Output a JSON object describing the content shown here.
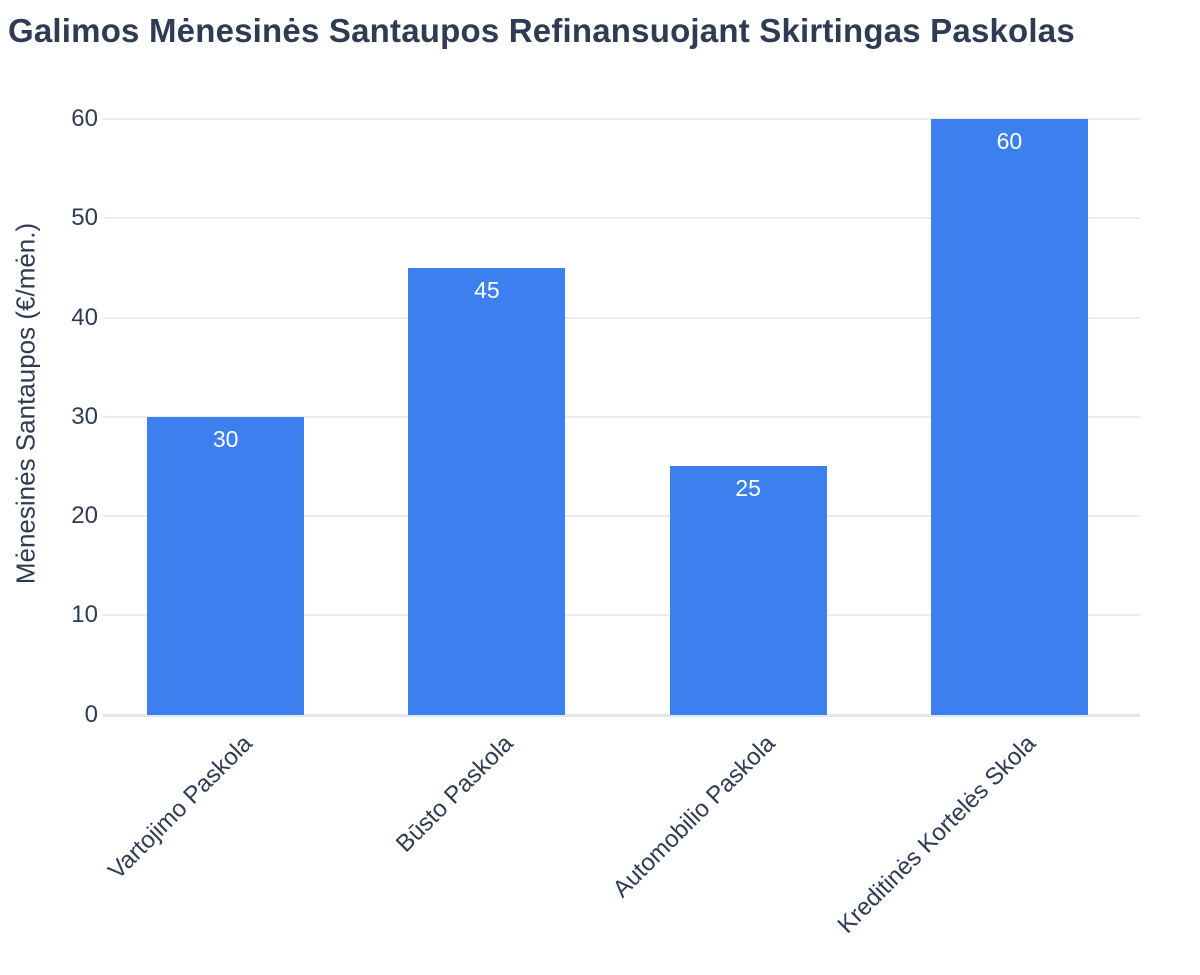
{
  "chart_data": {
    "type": "bar",
    "title": "Galimos Mėnesinės Santaupos Refinansuojant Skirtingas Paskolas",
    "xlabel": "",
    "ylabel": "Mėnesinės Santaupos (€/mėn.)",
    "categories": [
      "Vartojimo Paskola",
      "Būsto Paskola",
      "Automobilio Paskola",
      "Kreditinės Kortelės Skola"
    ],
    "values": [
      30,
      45,
      25,
      60
    ],
    "bar_labels": [
      "30",
      "45",
      "25",
      "60"
    ],
    "yticks": [
      0,
      10,
      20,
      30,
      40,
      50,
      60
    ],
    "ylim": [
      0,
      63
    ],
    "grid": true,
    "legend": false,
    "x_tick_angle": 45,
    "bar_label_position": "inside-top",
    "colors": {
      "bar": "#3c80f0",
      "bar_label_text": "#ffffff",
      "text": "#2e3b52",
      "gridline": "#ecedf2",
      "zeroline": "#e4e7ee",
      "background": "#ffffff"
    }
  }
}
